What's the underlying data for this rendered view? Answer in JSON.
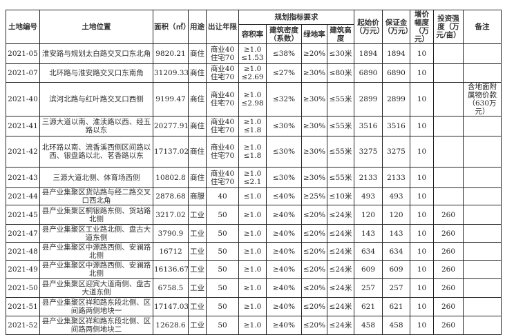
{
  "headers": {
    "id": "土地编号",
    "location": "土地位置",
    "area": "面积（㎡）",
    "use": "用途",
    "term": "出让年限",
    "planning": "规划指标要求",
    "far": "容积率",
    "density": "建筑密度（系数）",
    "green": "绿地率",
    "height": "建筑高度",
    "start_price": "起始价（万元）",
    "deposit": "保证金（万元）",
    "increment": "增价幅度（万元）",
    "investment": "投资强度（万元/亩）",
    "remarks": "备注"
  },
  "rows": [
    {
      "id": "2021-05",
      "location": "淮安路与规划太白路交叉口东北角",
      "area": "9820.21",
      "use": "商住",
      "term": [
        "商业40",
        "住宅70"
      ],
      "far": [
        "≥1.0",
        "≤1.53"
      ],
      "density": "≤38%",
      "green": "≥20%",
      "height": "≤30米",
      "start_price": "1894",
      "deposit": "1894",
      "increment": "10",
      "investment": "",
      "remarks": ""
    },
    {
      "id": "2021-07",
      "location": "北环路与淮安路交叉口东南角",
      "area": "31209.33",
      "use": "商住",
      "term": [
        "商业40",
        "住宅70"
      ],
      "far": [
        "≥1.0",
        "≤2.69"
      ],
      "density": "≤27%",
      "green": "≥30%",
      "height": "≤80米",
      "start_price": "6890",
      "deposit": "6890",
      "increment": "10",
      "investment": "",
      "remarks": ""
    },
    {
      "id": "2021-40",
      "location": "滨河北路与红叶路交叉口西侧",
      "area": "9199.47",
      "use": "商住",
      "term": [
        "商业40",
        "住宅70"
      ],
      "far": [
        "≥1.0",
        "≤2.98"
      ],
      "density": "≤32%",
      "green": "≥30%",
      "height": "≤55米",
      "start_price": "2899",
      "deposit": "2899",
      "increment": "10",
      "investment": "",
      "remarks": "含地面附属物价款（630万元）"
    },
    {
      "id": "2021-41",
      "location": "三源大道以南、淮渎路以西、经五路以东",
      "area": "20277.91",
      "use": "商住",
      "term": [
        "商业40",
        "住宅70"
      ],
      "far": [
        "≥1.0",
        "≤1.8"
      ],
      "density": "≤30%",
      "green": "≥30%",
      "height": "≤55米",
      "start_price": "3516",
      "deposit": "3516",
      "increment": "10",
      "investment": "",
      "remarks": ""
    },
    {
      "id": "2021-42",
      "location": "北环路以南、流香溪西侧区间路以西、银盘路以北、茗香路以东",
      "area": "17137.02",
      "use": "商住",
      "term": [
        "商业40",
        "住宅70"
      ],
      "far": [
        "≥1.0",
        "≤1.8"
      ],
      "density": "≤30%",
      "green": "≥30%",
      "height": "≤55米",
      "start_price": "3275",
      "deposit": "3275",
      "increment": "10",
      "investment": "",
      "remarks": ""
    },
    {
      "id": "2021-43",
      "location": "三源大道北侧、体育场西侧",
      "area": "10802.8",
      "use": "商住",
      "term": [
        "商业40",
        "住宅70"
      ],
      "far": [
        "≥1.0",
        "≤2.1"
      ],
      "density": "≤30%",
      "green": "≥30%",
      "height": "≤55米",
      "start_price": "2133",
      "deposit": "2133",
      "increment": "10",
      "investment": "",
      "remarks": ""
    },
    {
      "id": "2021-44",
      "location": "县产业集聚区货站路与经二路交叉口西北角",
      "area": "2878.68",
      "use": "商服",
      "term": [
        "40"
      ],
      "far": [
        "≤1.0"
      ],
      "density": "≤40%",
      "green": "≥25%",
      "height": "≤10米",
      "start_price": "493",
      "deposit": "493",
      "increment": "10",
      "investment": "",
      "remarks": ""
    },
    {
      "id": "2021-45",
      "location": "县产业集聚区桐银路东侧、货站路北侧",
      "area": "3217.02",
      "use": "工业",
      "term": [
        "50"
      ],
      "far": [
        "≥1.0"
      ],
      "density": "≥40%",
      "green": "≤20%",
      "height": "≤24米",
      "start_price": "120",
      "deposit": "120",
      "increment": "10",
      "investment": "260",
      "remarks": ""
    },
    {
      "id": "2021-47",
      "location": "县产业集聚区工业路北侧、盘古大道东侧",
      "area": "3790.9",
      "use": "工业",
      "term": [
        "50"
      ],
      "far": [
        "≥1.0"
      ],
      "density": "≥40%",
      "green": "≤20%",
      "height": "≤24米",
      "start_price": "143",
      "deposit": "143",
      "increment": "10",
      "investment": "260",
      "remarks": ""
    },
    {
      "id": "2021-48",
      "location": "县产业集聚区中源路西侧、安澜路北侧",
      "area": "16712",
      "use": "工业",
      "term": [
        "50"
      ],
      "far": [
        "≥1.0"
      ],
      "density": "≥40%",
      "green": "≤20%",
      "height": "≤24米",
      "start_price": "634",
      "deposit": "634",
      "increment": "10",
      "investment": "260",
      "remarks": ""
    },
    {
      "id": "2021-49",
      "location": "县产业集聚区中源路西侧、安澜路北侧",
      "area": "16136.67",
      "use": "工业",
      "term": [
        "50"
      ],
      "far": [
        "≥1.0"
      ],
      "density": "≥40%",
      "green": "≤20%",
      "height": "≤24米",
      "start_price": "609",
      "deposit": "609",
      "increment": "10",
      "investment": "260",
      "remarks": ""
    },
    {
      "id": "2021-50",
      "location": "县产业集聚区迎宾大道南侧、盘古大道东侧",
      "area": "6758.5",
      "use": "工业",
      "term": [
        "50"
      ],
      "far": [
        "≥1.0"
      ],
      "density": "≥40%",
      "green": "≤20%",
      "height": "≤24米",
      "start_price": "257",
      "deposit": "257",
      "increment": "10",
      "investment": "260",
      "remarks": ""
    },
    {
      "id": "2021-51",
      "location": "县产业集聚区祥和路东段北侧、区间路两侧地块一",
      "area": "17147.03",
      "use": "工业",
      "term": [
        "50"
      ],
      "far": [
        "≥1.0"
      ],
      "density": "≥40%",
      "green": "≤20%",
      "height": "≤24米",
      "start_price": "621",
      "deposit": "621",
      "increment": "10",
      "investment": "260",
      "remarks": ""
    },
    {
      "id": "2021-52",
      "location": "县产业集聚区祥和路东段北侧、区间路两侧地块二",
      "area": "12628.6",
      "use": "工业",
      "term": [
        "50"
      ],
      "far": [
        "≥1.0"
      ],
      "density": "≥40%",
      "green": "≤20%",
      "height": "≤24米",
      "start_price": "458",
      "deposit": "458",
      "increment": "10",
      "investment": "260",
      "remarks": ""
    }
  ]
}
